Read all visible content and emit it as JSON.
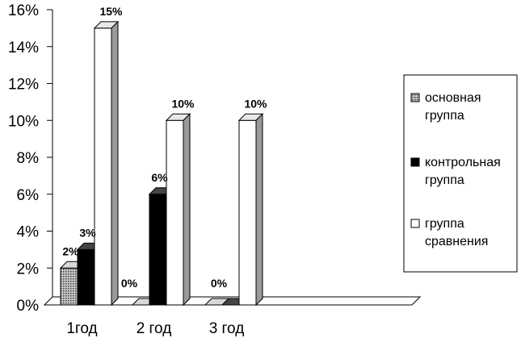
{
  "chart_data": {
    "type": "bar",
    "style": "3d-clustered-column",
    "categories": [
      "1год",
      "2 год",
      "3 год"
    ],
    "series": [
      {
        "name": "основная группа",
        "values": [
          2,
          0,
          0
        ],
        "fill": "dotted-gray",
        "color": "#9a9a9a"
      },
      {
        "name": "контрольная группа",
        "values": [
          3,
          6,
          0
        ],
        "fill": "solid",
        "color": "#000000"
      },
      {
        "name": "группа сравнения",
        "values": [
          15,
          10,
          10
        ],
        "fill": "solid",
        "color": "#ffffff"
      }
    ],
    "data_labels": [
      [
        "2%",
        "0%",
        ""
      ],
      [
        "3%",
        "6%",
        "0%"
      ],
      [
        "15%",
        "10%",
        "10%"
      ]
    ],
    "ylim": [
      0,
      16
    ],
    "yticks": [
      "0%",
      "2%",
      "4%",
      "6%",
      "8%",
      "10%",
      "12%",
      "14%",
      "16%"
    ],
    "ylabel": "",
    "xlabel": "",
    "title": "",
    "grid": false,
    "legend": {
      "placement": "right",
      "items": [
        {
          "line1": "основная",
          "line2": "группа"
        },
        {
          "line1": "контрольная",
          "line2": "группа"
        },
        {
          "line1": "группа",
          "line2": "сравнения"
        }
      ]
    }
  }
}
